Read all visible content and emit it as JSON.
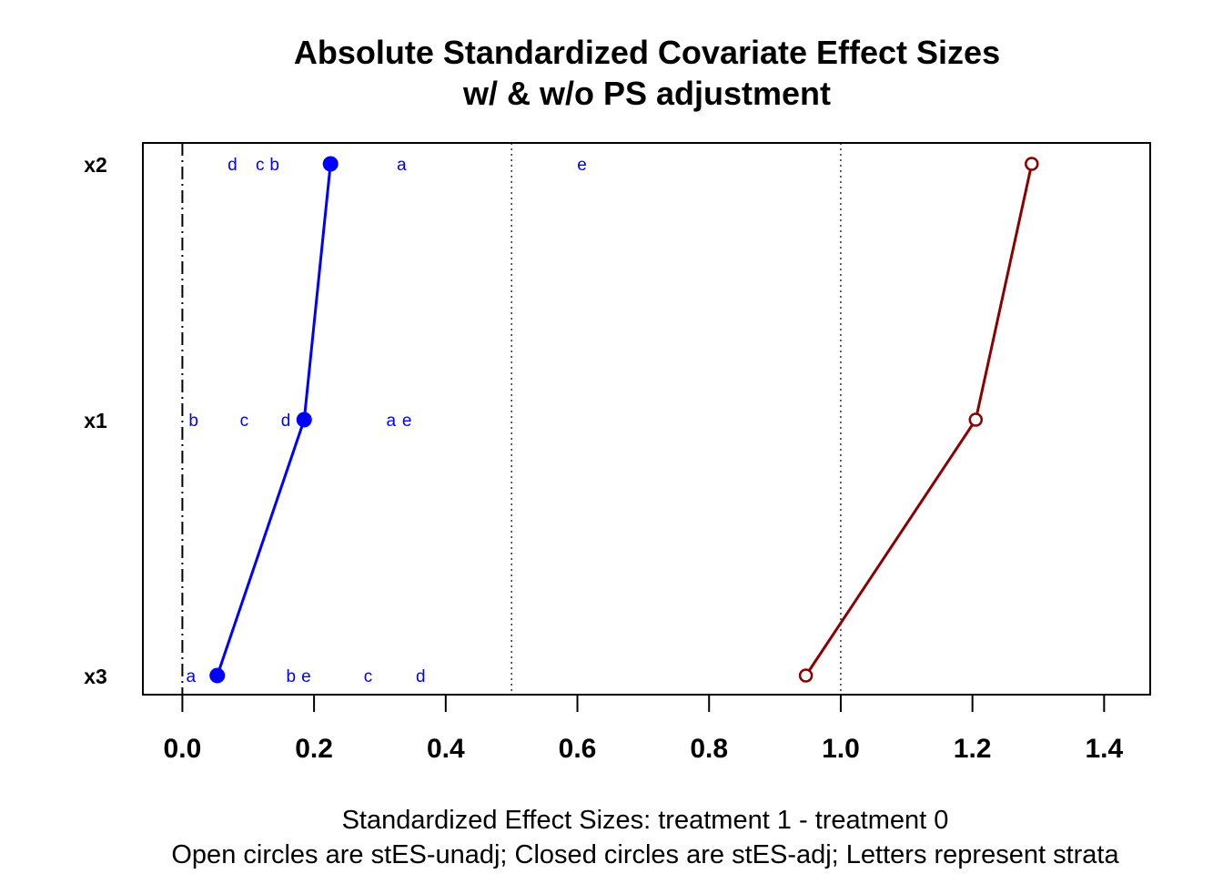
{
  "chart_data": {
    "type": "scatter",
    "title": [
      "Absolute Standardized Covariate Effect Sizes",
      "w/ & w/o PS adjustment"
    ],
    "xlabel": [
      "Standardized Effect Sizes: treatment 1 - treatment  0",
      "Open circles are stES-unadj; Closed circles are stES-adj; Letters represent strata"
    ],
    "ylabel": "",
    "xlim": [
      -0.06,
      1.47
    ],
    "x_ticks": [
      0.0,
      0.2,
      0.4,
      0.6,
      0.8,
      1.0,
      1.2,
      1.4
    ],
    "x_tick_labels": [
      "0.0",
      "0.2",
      "0.4",
      "0.6",
      "0.8",
      "1.0",
      "1.2",
      "1.4"
    ],
    "reference_lines": {
      "dashed_at": 0.0,
      "dotted_at": [
        0.5,
        1.0
      ]
    },
    "categories": [
      "x2",
      "x1",
      "x3"
    ],
    "series": [
      {
        "marker": "closed-circle",
        "color": "#0000ff",
        "values": [
          0.225,
          0.185,
          0.053
        ]
      },
      {
        "marker": "open-circle",
        "color": "#8b0000",
        "values": [
          1.29,
          1.205,
          0.947
        ]
      }
    ],
    "strata": [
      {
        "category": "x2",
        "letter": "d",
        "value": 0.076
      },
      {
        "category": "x2",
        "letter": "c",
        "value": 0.118
      },
      {
        "category": "x2",
        "letter": "b",
        "value": 0.14
      },
      {
        "category": "x2",
        "letter": "a",
        "value": 0.333
      },
      {
        "category": "x2",
        "letter": "e",
        "value": 0.607
      },
      {
        "category": "x1",
        "letter": "b",
        "value": 0.017
      },
      {
        "category": "x1",
        "letter": "c",
        "value": 0.094
      },
      {
        "category": "x1",
        "letter": "d",
        "value": 0.157
      },
      {
        "category": "x1",
        "letter": "a",
        "value": 0.317
      },
      {
        "category": "x1",
        "letter": "e",
        "value": 0.341
      },
      {
        "category": "x3",
        "letter": "a",
        "value": 0.013
      },
      {
        "category": "x3",
        "letter": "b",
        "value": 0.165
      },
      {
        "category": "x3",
        "letter": "e",
        "value": 0.188
      },
      {
        "category": "x3",
        "letter": "c",
        "value": 0.282
      },
      {
        "category": "x3",
        "letter": "d",
        "value": 0.362
      }
    ],
    "strata_color": "#0000ff",
    "grid": false,
    "legend": "none"
  }
}
